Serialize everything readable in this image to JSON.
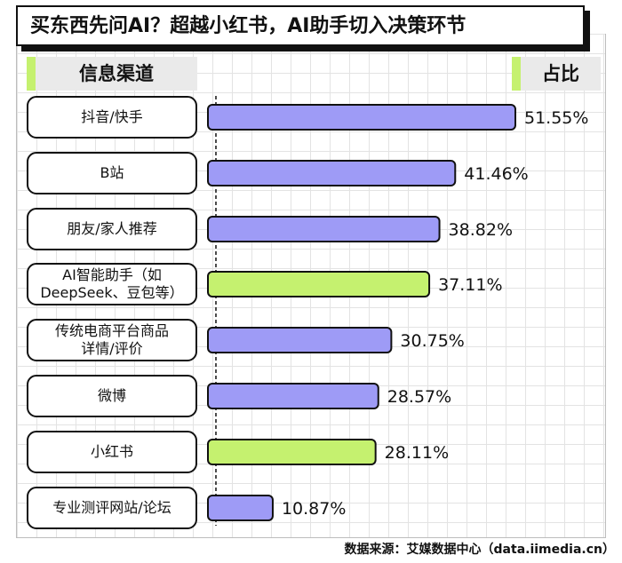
{
  "title": "买东西先问AI？超越小红书，AI助手切入决策环节",
  "header_left": "信息渠道",
  "header_right": "占比",
  "source": "数据来源：艾媒数据中心（data.iimedia.cn）",
  "colors": {
    "bar_default": "#9e9bf6",
    "bar_highlight": "#c5f16f",
    "outline": "#111111",
    "accent": "#c5f16f"
  },
  "chart_data": {
    "type": "bar",
    "orientation": "horizontal",
    "unit": "%",
    "categories": [
      "抖音/快手",
      "B站",
      "朋友/家人推荐",
      "AI智能助手（如 DeepSeek、豆包等）",
      "传统电商平台商品 详情/评价",
      "微博",
      "小红书",
      "专业测评网站/论坛"
    ],
    "values": [
      51.55,
      41.46,
      38.82,
      37.11,
      30.75,
      28.57,
      28.11,
      10.87
    ],
    "value_labels": [
      "51.55%",
      "41.46%",
      "38.82%",
      "37.11%",
      "30.75%",
      "28.57%",
      "28.11%",
      "10.87%"
    ],
    "highlight": [
      false,
      false,
      false,
      true,
      false,
      false,
      true,
      false
    ],
    "xlim": [
      0,
      51.55
    ],
    "grid": true
  },
  "rows": [
    {
      "line1": "抖音/快手",
      "line2": ""
    },
    {
      "line1": "B站",
      "line2": ""
    },
    {
      "line1": "朋友/家人推荐",
      "line2": ""
    },
    {
      "line1": "AI智能助手（如",
      "line2": "DeepSeek、豆包等）"
    },
    {
      "line1": "传统电商平台商品",
      "line2": "详情/评价"
    },
    {
      "line1": "微博",
      "line2": ""
    },
    {
      "line1": "小红书",
      "line2": ""
    },
    {
      "line1": "专业测评网站/论坛",
      "line2": ""
    }
  ]
}
